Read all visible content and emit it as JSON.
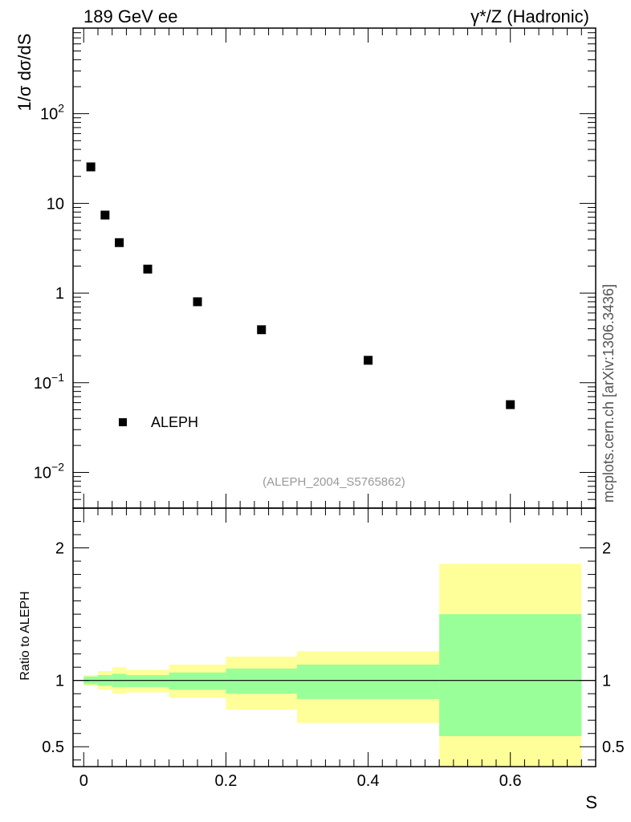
{
  "header": {
    "left": "189 GeV ee",
    "right": "γ*/Z (Hadronic)"
  },
  "watermark": "mcplots.cern.ch [arXiv:1306.3436]",
  "chart_data": [
    {
      "type": "scatter",
      "yscale": "log",
      "ylabel": "1/σ  dσ/dS",
      "ylim": [
        0.004,
        900
      ],
      "xlim": [
        -0.015,
        0.72
      ],
      "legend": "ALEPH",
      "legend_position": "bottom-left",
      "annotation": "(ALEPH_2004_S5765862)",
      "y_tick_labels": [
        {
          "value": 100,
          "base": "10",
          "exp": "2"
        },
        {
          "value": 10,
          "base": "10",
          "exp": ""
        },
        {
          "value": 1,
          "base": "1",
          "exp": ""
        },
        {
          "value": 0.1,
          "base": "10",
          "exp": "−1"
        },
        {
          "value": 0.01,
          "base": "10",
          "exp": "−2"
        }
      ],
      "series": [
        {
          "name": "ALEPH",
          "color": "#000000",
          "points": [
            {
              "x": 0.01,
              "y": 25.5
            },
            {
              "x": 0.03,
              "y": 7.4
            },
            {
              "x": 0.05,
              "y": 3.65
            },
            {
              "x": 0.09,
              "y": 1.85
            },
            {
              "x": 0.16,
              "y": 0.8
            },
            {
              "x": 0.25,
              "y": 0.39
            },
            {
              "x": 0.4,
              "y": 0.178
            },
            {
              "x": 0.6,
              "y": 0.057
            }
          ]
        }
      ]
    },
    {
      "type": "area",
      "ylabel": "Ratio to ALEPH",
      "xlabel": "S",
      "ylim": [
        0.35,
        2.3
      ],
      "xlim": [
        -0.015,
        0.72
      ],
      "x_ticks": [
        {
          "value": 0,
          "label": "0"
        },
        {
          "value": 0.2,
          "label": "0.2"
        },
        {
          "value": 0.4,
          "label": "0.4"
        },
        {
          "value": 0.6,
          "label": "0.6"
        }
      ],
      "y_ticks": [
        {
          "value": 0.5,
          "label": "0.5"
        },
        {
          "value": 1,
          "label": "1"
        },
        {
          "value": 2,
          "label": "2"
        }
      ],
      "reference_line": 1,
      "bins": [
        {
          "lo": 0.0,
          "hi": 0.02,
          "green": [
            0.97,
            1.03
          ],
          "yellow": [
            0.96,
            1.04
          ]
        },
        {
          "lo": 0.02,
          "hi": 0.04,
          "green": [
            0.96,
            1.04
          ],
          "yellow": [
            0.93,
            1.07
          ]
        },
        {
          "lo": 0.04,
          "hi": 0.06,
          "green": [
            0.95,
            1.05
          ],
          "yellow": [
            0.9,
            1.1
          ]
        },
        {
          "lo": 0.06,
          "hi": 0.12,
          "green": [
            0.95,
            1.04
          ],
          "yellow": [
            0.91,
            1.08
          ]
        },
        {
          "lo": 0.12,
          "hi": 0.2,
          "green": [
            0.93,
            1.06
          ],
          "yellow": [
            0.87,
            1.12
          ]
        },
        {
          "lo": 0.2,
          "hi": 0.3,
          "green": [
            0.9,
            1.09
          ],
          "yellow": [
            0.78,
            1.18
          ]
        },
        {
          "lo": 0.3,
          "hi": 0.5,
          "green": [
            0.86,
            1.12
          ],
          "yellow": [
            0.68,
            1.22
          ]
        },
        {
          "lo": 0.5,
          "hi": 0.7,
          "green": [
            0.58,
            1.5
          ],
          "yellow": [
            0.35,
            1.88
          ]
        }
      ],
      "colors": {
        "green": "#99ff99",
        "yellow": "#ffff99"
      }
    }
  ]
}
